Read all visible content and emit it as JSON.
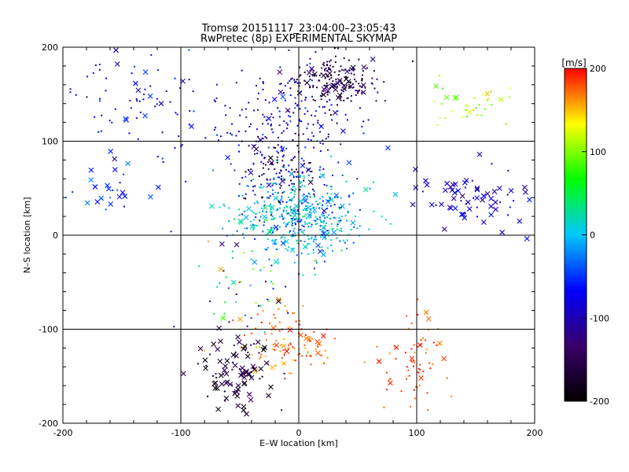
{
  "chart_data": {
    "type": "scatter",
    "title": "Tromsø 20151117_23:04:00–23:05:43",
    "subtitle": "RwPretec (8p) EXPERIMENTAL SKYMAP",
    "xlabel": "E–W location [km]",
    "ylabel": "N–S location [km]",
    "xlim": [
      -200,
      200
    ],
    "ylim": [
      -200,
      200
    ],
    "x_ticks": [
      -200,
      -100,
      0,
      100,
      200
    ],
    "y_ticks": [
      -200,
      -100,
      0,
      100,
      200
    ],
    "grid": true,
    "colorbar": {
      "label": "[m/s]",
      "range": [
        -200,
        200
      ],
      "ticks": [
        200,
        100,
        0,
        -100,
        -200
      ],
      "colors": [
        "#000000",
        "#3a006a",
        "#0000ff",
        "#00c8ff",
        "#00ff00",
        "#ffff00",
        "#ff0000"
      ]
    },
    "clusters": [
      {
        "cx": 30,
        "cy": 165,
        "sx": 22,
        "sy": 14,
        "n": 190,
        "vmin": -200,
        "vmax": -110,
        "marker": "dot"
      },
      {
        "cx": -10,
        "cy": 120,
        "sx": 30,
        "sy": 30,
        "n": 200,
        "vmin": -140,
        "vmax": -40,
        "marker": "dot"
      },
      {
        "cx": -15,
        "cy": 65,
        "sx": 18,
        "sy": 20,
        "n": 120,
        "vmin": -200,
        "vmax": -50,
        "marker": "dot"
      },
      {
        "cx": 0,
        "cy": 18,
        "sx": 28,
        "sy": 22,
        "n": 480,
        "vmin": -60,
        "vmax": 40,
        "marker": "dot"
      },
      {
        "cx": -130,
        "cy": 150,
        "sx": 40,
        "sy": 32,
        "n": 90,
        "vmin": -120,
        "vmax": -40,
        "marker": "dot"
      },
      {
        "cx": 150,
        "cy": 40,
        "sx": 28,
        "sy": 18,
        "n": 70,
        "vmin": -120,
        "vmax": -60,
        "marker": "x"
      },
      {
        "cx": 145,
        "cy": 140,
        "sx": 22,
        "sy": 15,
        "n": 35,
        "vmin": 80,
        "vmax": 160,
        "marker": "dot"
      },
      {
        "cx": -10,
        "cy": -115,
        "sx": 20,
        "sy": 18,
        "n": 110,
        "vmin": 150,
        "vmax": 200,
        "marker": "dot"
      },
      {
        "cx": -55,
        "cy": -150,
        "sx": 18,
        "sy": 20,
        "n": 90,
        "vmin": -200,
        "vmax": -130,
        "marker": "x"
      },
      {
        "cx": 100,
        "cy": -130,
        "sx": 15,
        "sy": 30,
        "n": 70,
        "vmin": 160,
        "vmax": 200,
        "marker": "dot"
      },
      {
        "cx": -40,
        "cy": -60,
        "sx": 25,
        "sy": 35,
        "n": 60,
        "vmin": -200,
        "vmax": 200,
        "marker": "dot"
      },
      {
        "cx": -170,
        "cy": 45,
        "sx": 18,
        "sy": 12,
        "n": 25,
        "vmin": -80,
        "vmax": -20,
        "marker": "x"
      }
    ]
  }
}
